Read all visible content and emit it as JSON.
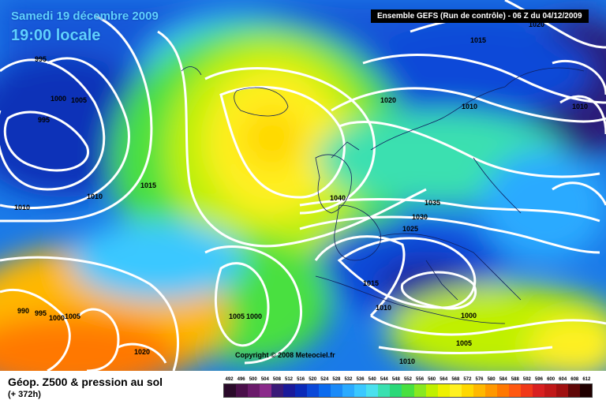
{
  "header": {
    "date": "Samedi 19 décembre 2009",
    "time": "19:00 locale",
    "run": "Ensemble GEFS (Run de contrôle)  - 06 Z du 04/12/2009"
  },
  "copyright": "Copyright © 2008 Meteociel.fr",
  "footer": {
    "title": "Géop. Z500 & pression au sol",
    "subtitle": "(+ 372h)"
  },
  "isobar_labels": [
    "995",
    "1000",
    "1005",
    "995",
    "1010",
    "1010",
    "1015",
    "1020",
    "1015",
    "1010",
    "1010",
    "1040",
    "1035",
    "1030",
    "1025",
    "1015",
    "1010",
    "1000",
    "1005",
    "1010",
    "990",
    "995",
    "1000",
    "1005",
    "1005",
    "1000",
    "1020",
    "1020"
  ],
  "legend": {
    "values": [
      "492",
      "496",
      "500",
      "504",
      "508",
      "512",
      "516",
      "520",
      "524",
      "528",
      "532",
      "536",
      "540",
      "544",
      "548",
      "552",
      "556",
      "560",
      "564",
      "568",
      "572",
      "576",
      "580",
      "584",
      "588",
      "592",
      "596",
      "600",
      "604",
      "608",
      "612"
    ],
    "colors": [
      "#2a0a2a",
      "#4a0f4a",
      "#6a1a6a",
      "#8a2a8a",
      "#3a1a78",
      "#1a1a9a",
      "#0a2ab8",
      "#0a48d8",
      "#0a6aee",
      "#1a8af8",
      "#2aaaff",
      "#3ac8ff",
      "#4ae0ee",
      "#3ae0b0",
      "#2ad878",
      "#48e040",
      "#88e820",
      "#c0f000",
      "#eef000",
      "#fff020",
      "#ffd800",
      "#ffb800",
      "#ff9800",
      "#ff7800",
      "#ff5810",
      "#f03818",
      "#d82020",
      "#c01818",
      "#a01010",
      "#600808",
      "#200000"
    ]
  }
}
